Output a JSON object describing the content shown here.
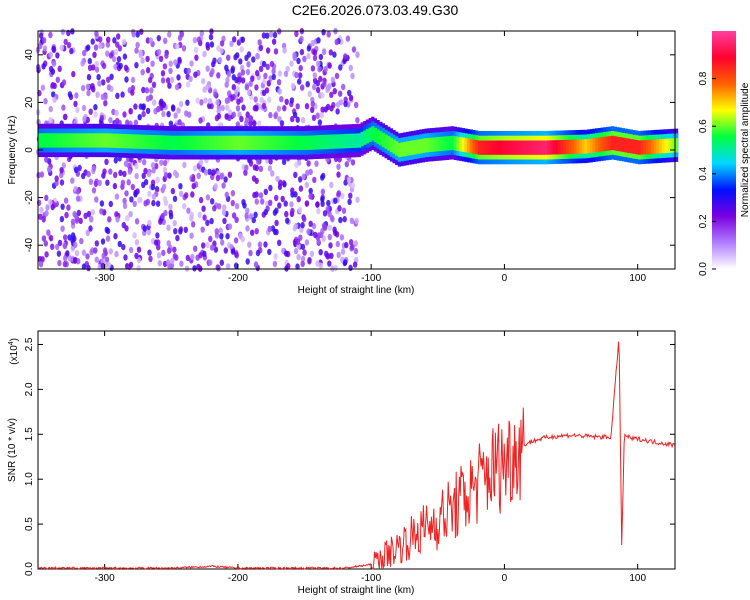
{
  "title": "C2E6.2026.073.03.49.G30",
  "chart_data": [
    {
      "type": "heatmap",
      "xlabel": "Height of straight line (km)",
      "ylabel": "Frequency (Hz)",
      "xlim": [
        -350,
        128
      ],
      "ylim": [
        -50,
        50
      ],
      "xticks": [
        -300,
        -200,
        -100,
        0,
        100
      ],
      "yticks": [
        -40,
        -20,
        0,
        20,
        40
      ],
      "colorbar": {
        "label": "Normalized spectral amplitude",
        "range": [
          0,
          1
        ],
        "ticks": [
          0.0,
          0.2,
          0.4,
          0.6,
          0.8
        ],
        "colors": [
          "#ffffff",
          "#b07cff",
          "#7a00e0",
          "#0010ff",
          "#00d8ff",
          "#00ff40",
          "#ffff00",
          "#ff6000",
          "#ff0030",
          "#ff40a0"
        ]
      },
      "ridge": [
        {
          "x": -350,
          "f": 4,
          "amp": 0.55
        },
        {
          "x": -300,
          "f": 4,
          "amp": 0.6
        },
        {
          "x": -250,
          "f": 3,
          "amp": 0.55
        },
        {
          "x": -200,
          "f": 3,
          "amp": 0.6
        },
        {
          "x": -150,
          "f": 3,
          "amp": 0.55
        },
        {
          "x": -110,
          "f": 4,
          "amp": 0.5
        },
        {
          "x": -100,
          "f": 7,
          "amp": 0.55
        },
        {
          "x": -80,
          "f": 0,
          "amp": 0.6
        },
        {
          "x": -60,
          "f": 2,
          "amp": 0.6
        },
        {
          "x": -40,
          "f": 3,
          "amp": 0.55
        },
        {
          "x": -20,
          "f": 1,
          "amp": 0.85
        },
        {
          "x": 0,
          "f": 1,
          "amp": 0.9
        },
        {
          "x": 30,
          "f": 1,
          "amp": 0.95
        },
        {
          "x": 60,
          "f": 1.5,
          "amp": 0.7
        },
        {
          "x": 80,
          "f": 3,
          "amp": 0.85
        },
        {
          "x": 100,
          "f": 1,
          "amp": 0.85
        },
        {
          "x": 128,
          "f": 2,
          "amp": 0.6
        }
      ],
      "noise_region_x": [
        -350,
        -110
      ]
    },
    {
      "type": "line",
      "xlabel": "Height of straight line (km)",
      "ylabel": "SNR (10 * v/v)",
      "y_scale_label": "(x10",
      "y_scale_exponent": "4",
      "xlim": [
        -350,
        128
      ],
      "ylim": [
        0,
        2.65
      ],
      "xticks": [
        -300,
        -200,
        -100,
        0,
        100
      ],
      "yticks": [
        0.0,
        0.5,
        1.0,
        1.5,
        2.0,
        2.5
      ],
      "series": [
        {
          "color": "#ee2222",
          "x": [
            -350,
            -300,
            -250,
            -220,
            -200,
            -150,
            -120,
            -100,
            -90,
            -80,
            -70,
            -60,
            -50,
            -40,
            -30,
            -20,
            -10,
            0,
            10,
            20,
            30,
            40,
            50,
            60,
            70,
            80,
            86,
            88,
            90,
            95,
            100,
            110,
            128
          ],
          "y": [
            0.01,
            0.01,
            0.01,
            0.03,
            0.01,
            0.01,
            0.01,
            0.05,
            0.15,
            0.25,
            0.35,
            0.45,
            0.55,
            0.65,
            0.8,
            0.95,
            1.1,
            1.2,
            1.35,
            1.42,
            1.46,
            1.48,
            1.49,
            1.48,
            1.47,
            1.47,
            2.6,
            0.25,
            1.5,
            1.45,
            1.45,
            1.42,
            1.38
          ]
        }
      ]
    }
  ]
}
